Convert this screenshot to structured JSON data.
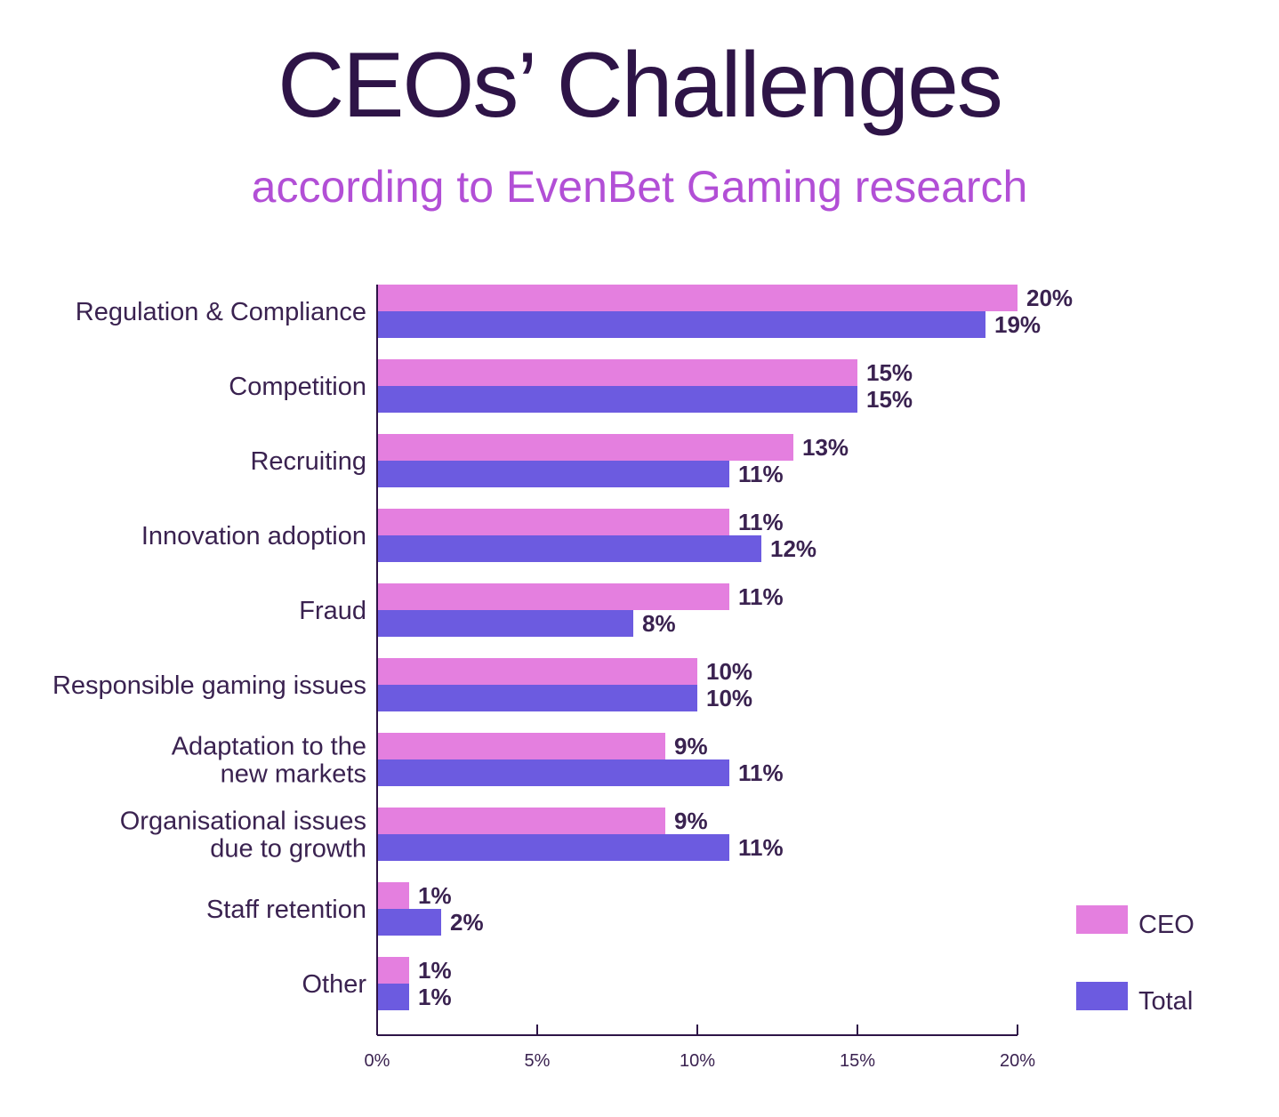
{
  "chart_data": {
    "type": "bar",
    "orientation": "horizontal",
    "title": "CEOs’ Challenges",
    "subtitle": "according to EvenBet Gaming research",
    "categories": [
      [
        "Regulation & Compliance"
      ],
      [
        "Competition"
      ],
      [
        "Recruiting"
      ],
      [
        "Innovation adoption"
      ],
      [
        "Fraud"
      ],
      [
        "Responsible gaming issues"
      ],
      [
        "Adaptation to the",
        "new markets"
      ],
      [
        "Organisational issues",
        "due to growth"
      ],
      [
        "Staff retention"
      ],
      [
        "Other"
      ]
    ],
    "series": [
      {
        "name": "CEO",
        "color": "#e47fdf",
        "values": [
          20,
          15,
          13,
          11,
          11,
          10,
          9,
          9,
          1,
          1
        ]
      },
      {
        "name": "Total",
        "color": "#6c5be0",
        "values": [
          19,
          15,
          11,
          12,
          8,
          10,
          11,
          11,
          2,
          1
        ]
      }
    ],
    "value_suffix": "%",
    "xlim": [
      0,
      20
    ],
    "xticks": [
      0,
      5,
      10,
      15,
      20
    ],
    "xtick_labels": [
      "0%",
      "5%",
      "10%",
      "15%",
      "20%"
    ],
    "grid": false,
    "legend_position": "bottom-right"
  },
  "colors": {
    "title": "#2e1447",
    "subtitle": "#b24fd6",
    "text": "#3a2250",
    "axis": "#2e1447"
  }
}
